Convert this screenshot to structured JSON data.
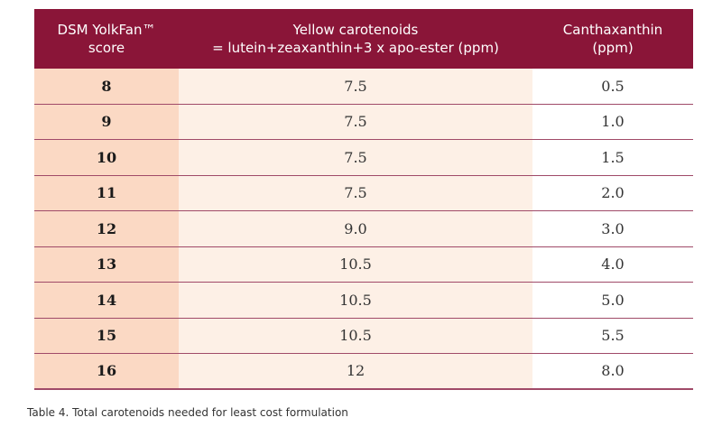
{
  "table": {
    "headers": {
      "score_line1": "DSM YolkFan™",
      "score_line2": "score",
      "yellow_line1": "Yellow carotenoids",
      "yellow_line2": "= lutein+zeaxanthin+3 x apo-ester (ppm)",
      "cantha_line1": "Canthaxanthin",
      "cantha_line2": "(ppm)"
    },
    "rows": [
      {
        "score": "8",
        "yellow": "7.5",
        "cantha": "0.5"
      },
      {
        "score": "9",
        "yellow": "7.5",
        "cantha": "1.0"
      },
      {
        "score": "10",
        "yellow": "7.5",
        "cantha": "1.5"
      },
      {
        "score": "11",
        "yellow": "7.5",
        "cantha": "2.0"
      },
      {
        "score": "12",
        "yellow": "9.0",
        "cantha": "3.0"
      },
      {
        "score": "13",
        "yellow": "10.5",
        "cantha": "4.0"
      },
      {
        "score": "14",
        "yellow": "10.5",
        "cantha": "5.0"
      },
      {
        "score": "15",
        "yellow": "10.5",
        "cantha": "5.5"
      },
      {
        "score": "16",
        "yellow": "12",
        "cantha": "8.0"
      }
    ]
  },
  "caption": "Table 4. Total carotenoids needed for least cost formulation",
  "colors": {
    "header_bg": "#8a1538",
    "score_bg": "#fbd9c4",
    "yellow_bg": "#fdf0e6",
    "row_divider": "#a04a68"
  }
}
